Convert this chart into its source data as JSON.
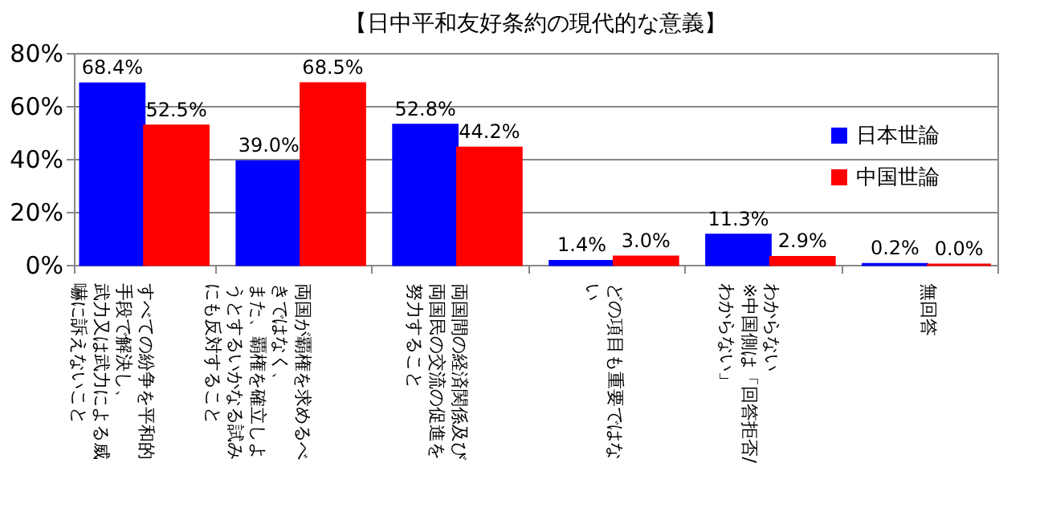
{
  "chart_data": {
    "type": "bar",
    "title": "【日中平和友好条約の現代的な意義】",
    "categories": [
      "すべての紛争を平和的手段で解決し、武力又は武力による威嚇に訴えないこと",
      "両国が覇権を求めるべきではなく、また、覇権を確立しようとするいかなる試みにも反対すること",
      "両国間の経済関係及び両国民の交流の促進を努力すること",
      "どの項目も重要ではない",
      "わからない※中国側は「回答拒否/わからない」",
      "無回答"
    ],
    "series": [
      {
        "name": "日本世論",
        "color": "#0000ff",
        "values": [
          68.4,
          39.0,
          52.8,
          1.4,
          11.3,
          0.2
        ],
        "value_labels": [
          "68.4%",
          "39.0%",
          "52.8%",
          "1.4%",
          "11.3%",
          "0.2%"
        ]
      },
      {
        "name": "中国世論",
        "color": "#ff0000",
        "values": [
          52.5,
          68.5,
          44.2,
          3.0,
          2.9,
          0.0
        ],
        "value_labels": [
          "52.5%",
          "68.5%",
          "44.2%",
          "3.0%",
          "2.9%",
          "0.0%"
        ]
      }
    ],
    "ylim": [
      0,
      80
    ],
    "yticks": [
      {
        "value": 0,
        "label": "0%"
      },
      {
        "value": 20,
        "label": "20%"
      },
      {
        "value": 40,
        "label": "40%"
      },
      {
        "value": 60,
        "label": "60%"
      },
      {
        "value": 80,
        "label": "80%"
      }
    ],
    "grid": "y",
    "legend": "right"
  }
}
